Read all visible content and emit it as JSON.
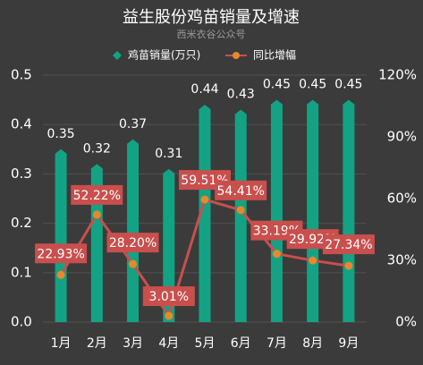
{
  "title": "益生股份鸡苗销量及增速",
  "subtitle": "西米衣谷公众号",
  "colors": {
    "background": "#3b3b3b",
    "bar": "#13a384",
    "line": "#c94f4d",
    "marker": "#e58a2c",
    "label_box": "#c94f4d",
    "grid": "#505050"
  },
  "chart_data": {
    "type": "bar",
    "categories": [
      "1月",
      "2月",
      "3月",
      "4月",
      "5月",
      "6月",
      "7月",
      "8月",
      "9月"
    ],
    "series": [
      {
        "name": "鸡苗销量(万只)",
        "type": "bar",
        "axis": "left",
        "values": [
          0.35,
          0.32,
          0.37,
          0.31,
          0.44,
          0.43,
          0.45,
          0.45,
          0.45
        ],
        "labels": [
          "0.35",
          "0.32",
          "0.37",
          "0.31",
          "0.44",
          "0.43",
          "0.45",
          "0.45",
          "0.45"
        ]
      },
      {
        "name": "同比增幅",
        "type": "line",
        "axis": "right",
        "values": [
          22.93,
          52.22,
          28.2,
          3.01,
          59.51,
          54.41,
          33.19,
          29.92,
          27.34
        ],
        "labels": [
          "22.93%",
          "52.22%",
          "28.20%",
          "3.01%",
          "59.51%",
          "54.41%",
          "33.19%",
          "29.92%",
          "27.34%"
        ]
      }
    ],
    "y_left": {
      "min": 0,
      "max": 0.5,
      "ticks": [
        "0.0",
        "0.1",
        "0.2",
        "0.3",
        "0.4",
        "0.5"
      ]
    },
    "y_right": {
      "min": 0,
      "max": 120,
      "ticks": [
        "0%",
        "30%",
        "60%",
        "90%",
        "120%"
      ]
    },
    "legend_position": "top"
  }
}
